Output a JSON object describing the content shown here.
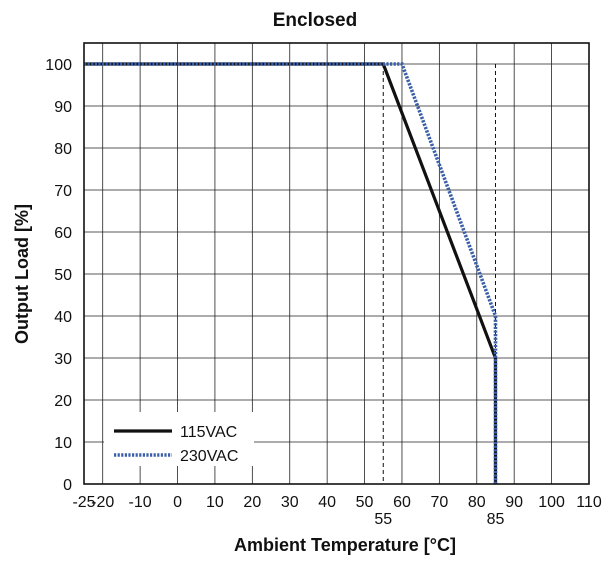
{
  "chart_data": {
    "type": "line",
    "title": "Enclosed",
    "xlabel": "Ambient Temperature [°C]",
    "ylabel": "Output Load [%]",
    "xlim": [
      -25,
      110
    ],
    "ylim": [
      0,
      105
    ],
    "x_ticks": [
      -25,
      -20,
      -10,
      0,
      10,
      20,
      30,
      40,
      50,
      60,
      70,
      80,
      90,
      100,
      110
    ],
    "y_ticks": [
      0,
      10,
      20,
      30,
      40,
      50,
      60,
      70,
      80,
      90,
      100
    ],
    "extra_x_ticks": [
      55,
      85
    ],
    "grid": true,
    "legend_position": "bottom-left",
    "series": [
      {
        "name": "115VAC",
        "color": "#111111",
        "style": "solid",
        "x": [
          -25,
          55,
          85,
          85
        ],
        "y": [
          100,
          100,
          30,
          0
        ]
      },
      {
        "name": "230VAC",
        "color": "#3a5fa8",
        "style": "dotted",
        "x": [
          -25,
          60,
          85,
          85
        ],
        "y": [
          100,
          100,
          40,
          0
        ]
      }
    ],
    "reference_lines": [
      {
        "axis": "x",
        "value": 55,
        "style": "dashed"
      },
      {
        "axis": "x",
        "value": 85,
        "style": "dashed"
      }
    ]
  }
}
